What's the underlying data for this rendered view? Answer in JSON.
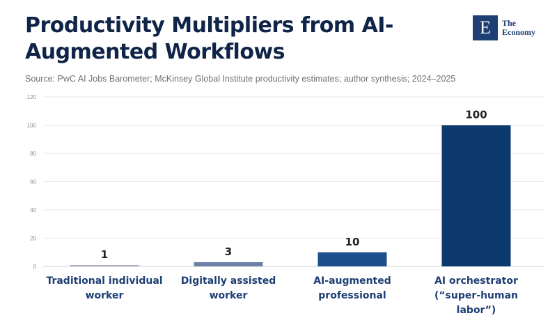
{
  "header": {
    "title": "Productivity Multipliers from AI-Augmented Workflows",
    "source": "Source: PwC AI Jobs Barometer; McKinsey Global Institute productivity estimates; author synthesis; 2024–2025"
  },
  "logo": {
    "mark": "E",
    "line1": "The",
    "line2": "Economy"
  },
  "chart_data": {
    "type": "bar",
    "categories": [
      "Traditional individual worker",
      "Digitally assisted worker",
      "AI-augmented professional",
      "AI orchestrator (“super-human labor”)"
    ],
    "values": [
      1,
      3,
      10,
      100
    ],
    "colors": [
      "#a9afc4",
      "#6e7fa6",
      "#1d4f8c",
      "#0d3a6e"
    ],
    "yticks": [
      0,
      20,
      40,
      60,
      80,
      100,
      120
    ],
    "ylim": [
      0,
      120
    ],
    "grid": true,
    "legend": "none"
  }
}
